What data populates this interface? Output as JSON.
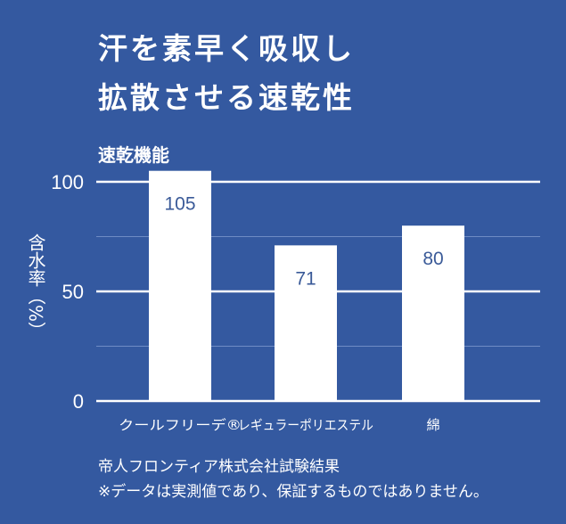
{
  "title_lines": [
    "汗を素早く吸収し",
    "拡散させる速乾性"
  ],
  "chart_data": {
    "type": "bar",
    "title": "速乾機能",
    "ylabel": "含水率（%）",
    "xlabel": "",
    "categories": [
      "クールフリーデ®",
      "レギュラーポリエステル",
      "綿"
    ],
    "values": [
      105,
      71,
      80
    ],
    "ylim": [
      0,
      100
    ],
    "yticks": [
      0,
      50,
      100
    ],
    "minor_gridlines": [
      25,
      75
    ],
    "grid": true,
    "bar_color": "#ffffff",
    "label_color": "#3a5a98",
    "background": "#3459a0"
  },
  "footnotes": [
    "帝人フロンティア株式会社試験結果",
    "※データは実測値であり、保証するものではありません。"
  ]
}
